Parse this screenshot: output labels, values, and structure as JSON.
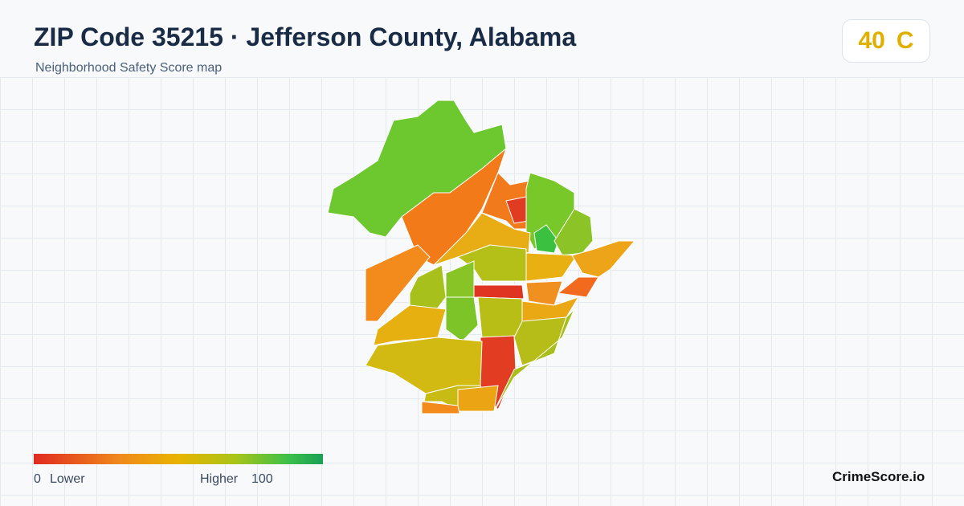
{
  "header": {
    "title": "ZIP Code 35215 · Jefferson County, Alabama",
    "subtitle": "Neighborhood Safety Score map"
  },
  "score": {
    "value": 40,
    "grade": "C"
  },
  "legend": {
    "min": 0,
    "min_label": "Lower",
    "max_label": "Higher",
    "max": 100
  },
  "brand": "CrimeScore.io"
}
